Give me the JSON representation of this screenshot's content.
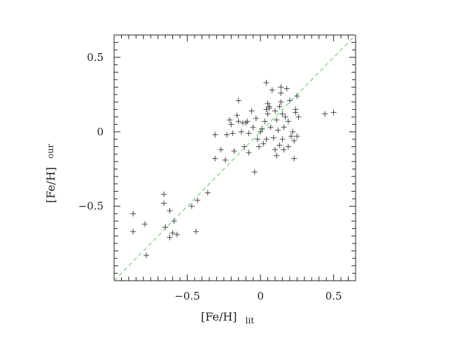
{
  "chart_data": {
    "type": "scatter",
    "marker": "plus",
    "xlabel_main": "[Fe/H]",
    "xlabel_sub": "lit",
    "ylabel_main": "[Fe/H]",
    "ylabel_sub": "our",
    "xlim": [
      -1.0,
      0.65
    ],
    "ylim": [
      -1.0,
      0.65
    ],
    "x_ticks": [
      -0.5,
      0,
      0.5
    ],
    "x_tick_labels": [
      "−0.5",
      "0",
      "0.5"
    ],
    "y_ticks": [
      -0.5,
      0,
      0.5
    ],
    "y_tick_labels": [
      "−0.5",
      "0",
      "0.5"
    ],
    "grid": false,
    "reference_line": {
      "x": [
        -1.0,
        0.65
      ],
      "y": [
        -1.0,
        0.65
      ],
      "style": "dashed",
      "color": "#55cc55"
    },
    "marker_color": "#444444",
    "series": [
      {
        "x": [
          -0.87,
          -0.87,
          -0.79,
          -0.78,
          -0.66,
          -0.66,
          -0.65,
          -0.62,
          -0.62,
          -0.59,
          -0.6,
          -0.57,
          -0.47,
          -0.44,
          -0.43,
          -0.36,
          -0.31,
          -0.31,
          -0.27,
          -0.24,
          -0.23,
          -0.21,
          -0.2,
          -0.19,
          -0.18,
          -0.16,
          -0.15,
          -0.15,
          -0.13,
          -0.12,
          -0.11,
          -0.1,
          -0.09,
          -0.08,
          -0.08,
          -0.06,
          -0.05,
          -0.04,
          -0.03,
          -0.02,
          -0.01,
          0.0,
          0.01,
          0.02,
          0.03,
          0.04,
          0.04,
          0.04,
          0.05,
          0.05,
          0.06,
          0.06,
          0.07,
          0.08,
          0.09,
          0.1,
          0.1,
          0.11,
          0.11,
          0.12,
          0.13,
          0.13,
          0.14,
          0.14,
          0.14,
          0.15,
          0.15,
          0.16,
          0.16,
          0.17,
          0.18,
          0.19,
          0.19,
          0.2,
          0.21,
          0.22,
          0.23,
          0.23,
          0.24,
          0.24,
          0.25,
          0.25,
          0.26,
          0.44,
          0.5
        ],
        "y": [
          -0.55,
          -0.67,
          -0.62,
          -0.83,
          -0.42,
          -0.48,
          -0.64,
          -0.71,
          -0.53,
          -0.6,
          -0.68,
          -0.69,
          -0.5,
          -0.67,
          -0.46,
          -0.41,
          -0.02,
          -0.18,
          -0.12,
          -0.19,
          -0.02,
          0.08,
          0.05,
          -0.01,
          -0.13,
          0.11,
          0.21,
          0.07,
          0.0,
          0.06,
          -0.1,
          0.06,
          0.07,
          -0.14,
          -0.01,
          0.14,
          0.03,
          -0.27,
          0.09,
          -0.05,
          -0.1,
          0.0,
          0.02,
          -0.08,
          0.07,
          0.33,
          0.15,
          -0.05,
          0.19,
          0.12,
          0.17,
          0.16,
          0.03,
          0.28,
          -0.04,
          -0.12,
          0.14,
          0.08,
          -0.16,
          0.01,
          0.17,
          -0.09,
          0.26,
          0.3,
          0.2,
          -0.05,
          0.12,
          0.03,
          -0.12,
          0.1,
          0.29,
          0.07,
          -0.1,
          0.21,
          -0.03,
          0.0,
          -0.06,
          -0.18,
          0.15,
          0.13,
          -0.03,
          0.24,
          0.1,
          0.12,
          0.13
        ]
      }
    ]
  }
}
